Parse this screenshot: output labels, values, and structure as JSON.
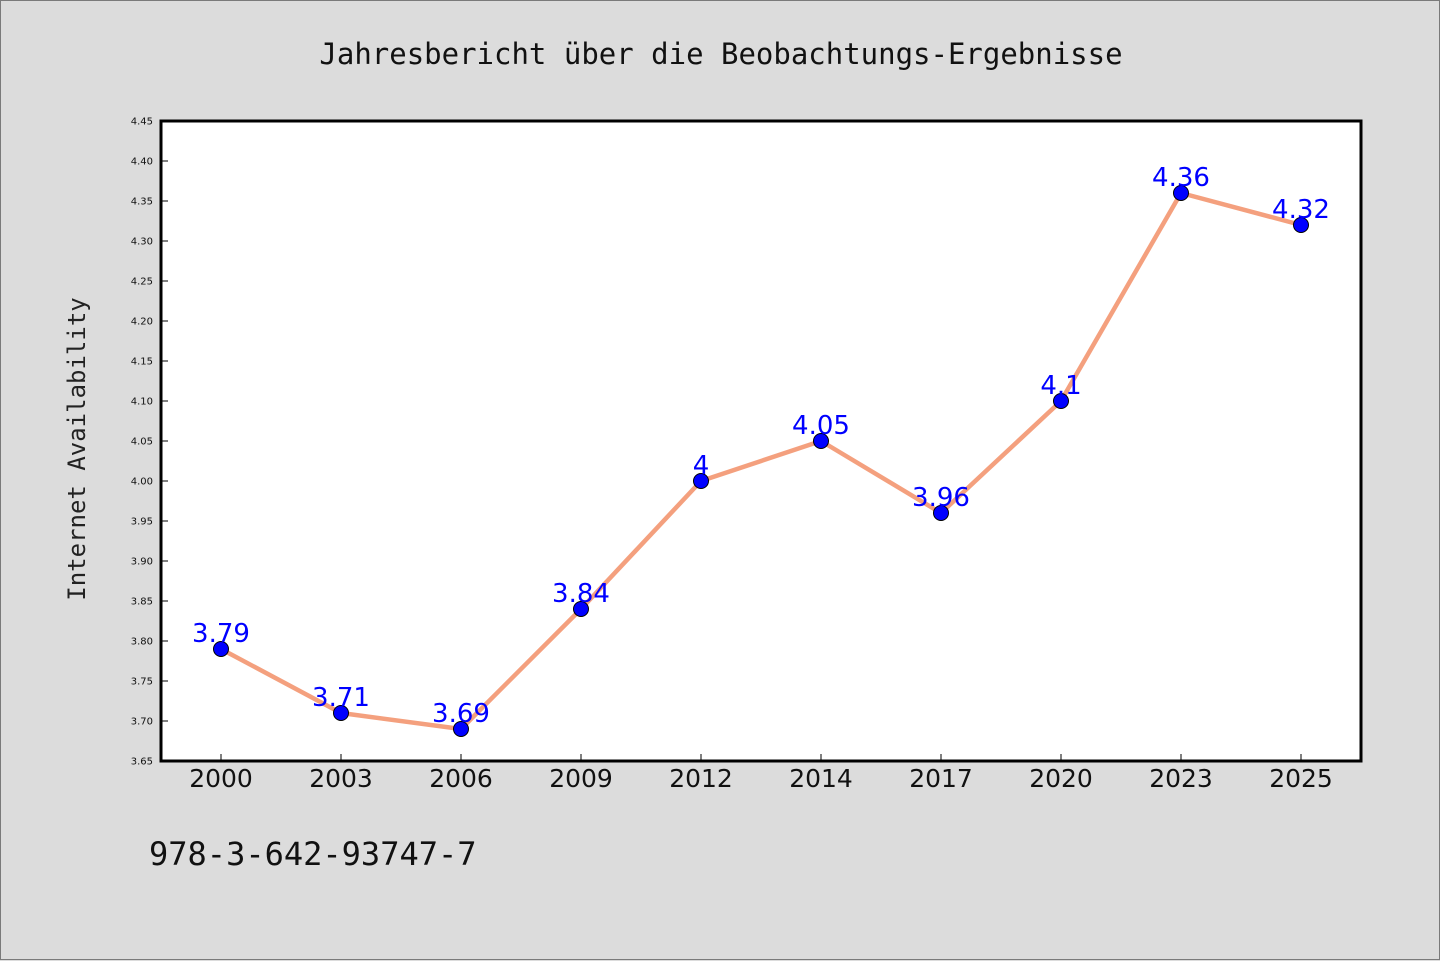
{
  "chart_data": {
    "type": "line",
    "title": "Jahresbericht über die Beobachtungs-Ergebnisse",
    "xlabel": "",
    "ylabel": "Internet Availability",
    "categories": [
      "2000",
      "2003",
      "2006",
      "2009",
      "2012",
      "2014",
      "2017",
      "2020",
      "2023",
      "2025"
    ],
    "series": [
      {
        "values": [
          3.79,
          3.71,
          3.69,
          3.84,
          4.0,
          4.05,
          3.96,
          4.1,
          4.36,
          4.32
        ],
        "data_labels": [
          "3.79",
          "3.71",
          "3.69",
          "3.84",
          "4",
          "4.05",
          "3.96",
          "4.1",
          "4.36",
          "4.32"
        ],
        "line_color": "#f4a07e",
        "marker_color": "#0000ff"
      }
    ],
    "ylim": [
      3.65,
      4.45
    ],
    "yticks": [
      "3.65",
      "3.70",
      "3.75",
      "3.80",
      "3.85",
      "3.90",
      "3.95",
      "4.00",
      "4.05",
      "4.10",
      "4.15",
      "4.20",
      "4.25",
      "4.30",
      "4.35",
      "4.40",
      "4.45"
    ],
    "grid": false,
    "legend": "none"
  },
  "footer": {
    "text": "978-3-642-93747-7"
  },
  "colors": {
    "background": "#dcdcdc",
    "plot_background": "#ffffff",
    "line": "#f4a07e",
    "marker": "#0000ff",
    "data_label": "#0000ff"
  }
}
